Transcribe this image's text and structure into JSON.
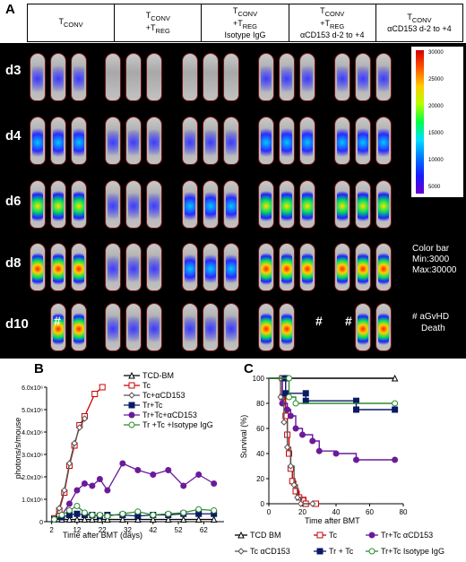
{
  "panel_a": {
    "letter": "A",
    "columns": [
      {
        "line1": "T",
        "sub1": "CONV",
        "line2": "",
        "line3": ""
      },
      {
        "line1": "T",
        "sub1": "CONV",
        "line2": "+T",
        "sub2": "REG",
        "line3": ""
      },
      {
        "line1": "T",
        "sub1": "CONV",
        "line2": "+T",
        "sub2": "REG",
        "line3": "Isotype IgG"
      },
      {
        "line1": "T",
        "sub1": "CONV",
        "line2": "+T",
        "sub2": "REG",
        "line3": "αCD153 d-2 to +4"
      },
      {
        "line1": "T",
        "sub1": "CONV",
        "line2": "",
        "line3": "αCD153 d-2 to +4"
      }
    ],
    "days": [
      "d3",
      "d4",
      "d6",
      "d8",
      "d10"
    ],
    "colorbar": {
      "ticks": [
        "30000",
        "25000",
        "20000",
        "15000",
        "10000",
        "5000"
      ],
      "label1": "Color bar",
      "label2": "Min:3000",
      "label3": "Max:30000"
    },
    "death_mark": "#",
    "death_note1": "# aGvHD",
    "death_note2": "Death"
  },
  "panel_b": {
    "letter": "B",
    "chart_data": {
      "type": "line",
      "xlabel": "Time after BMT (days)",
      "ylabel": "photons/s/mouse",
      "x_ticks": [
        "2",
        "12",
        "22",
        "32",
        "42",
        "52",
        "62"
      ],
      "y_ticks": [
        "0",
        "1.0x10⁶",
        "2.0x10⁶",
        "3.0x10⁶",
        "4.0x10⁶",
        "5.0x10⁶",
        "6.0x10⁶"
      ],
      "xlim": [
        0,
        70
      ],
      "ylim": [
        0,
        6000000
      ],
      "series": [
        {
          "name": "TCD-BM",
          "color": "#000000",
          "marker": "triangle",
          "x": [
            3,
            6,
            9,
            12,
            15,
            18,
            21,
            24,
            30,
            36,
            42,
            48,
            54,
            60,
            66
          ],
          "y": [
            100000,
            100000,
            100000,
            100000,
            100000,
            100000,
            100000,
            100000,
            100000,
            100000,
            100000,
            100000,
            100000,
            100000,
            100000
          ]
        },
        {
          "name": "Tc",
          "color": "#cc0000",
          "marker": "open-square",
          "x": [
            3,
            5,
            7,
            9,
            11,
            13,
            15,
            19,
            22
          ],
          "y": [
            150000,
            500000,
            1300000,
            2500000,
            3400000,
            4300000,
            4700000,
            5700000,
            6000000
          ]
        },
        {
          "name": "Tc+αCD153",
          "color": "#555555",
          "marker": "diamond",
          "x": [
            3,
            5,
            7,
            9,
            11,
            13,
            15
          ],
          "y": [
            150000,
            600000,
            1400000,
            2600000,
            3500000,
            4200000,
            4600000
          ]
        },
        {
          "name": "Tr+Tc",
          "color": "#0a1a66",
          "marker": "filled-square",
          "x": [
            3,
            6,
            9,
            12,
            15,
            18,
            21,
            24,
            30,
            36,
            42,
            48,
            54,
            60,
            66
          ],
          "y": [
            100000,
            200000,
            300000,
            350000,
            300000,
            300000,
            250000,
            300000,
            300000,
            250000,
            300000,
            300000,
            350000,
            350000,
            350000
          ]
        },
        {
          "name": "Tr+Tc+αCD153",
          "color": "#6a1b9a",
          "marker": "circle",
          "x": [
            3,
            6,
            9,
            12,
            15,
            18,
            21,
            24,
            30,
            36,
            42,
            48,
            54,
            60,
            66
          ],
          "y": [
            100000,
            300000,
            800000,
            1400000,
            1700000,
            1600000,
            1900000,
            1400000,
            2600000,
            2300000,
            2100000,
            2300000,
            1600000,
            2100000,
            1700000
          ]
        },
        {
          "name": "Tr +Tc +Isotype IgG",
          "color": "#2e8b2e",
          "marker": "open-circle",
          "x": [
            3,
            6,
            9,
            12,
            15,
            18,
            21,
            24,
            30,
            36,
            42,
            48,
            54,
            60,
            66
          ],
          "y": [
            100000,
            300000,
            500000,
            700000,
            400000,
            300000,
            300000,
            250000,
            350000,
            450000,
            300000,
            350000,
            400000,
            550000,
            500000
          ]
        }
      ]
    }
  },
  "panel_c": {
    "letter": "C",
    "chart_data": {
      "type": "line",
      "xlabel": "Time after BMT",
      "ylabel": "Survival (%)",
      "x_ticks": [
        "0",
        "20",
        "40",
        "60",
        "80"
      ],
      "y_ticks": [
        "0",
        "20",
        "40",
        "60",
        "80",
        "100"
      ],
      "xlim": [
        0,
        80
      ],
      "ylim": [
        0,
        100
      ],
      "series": [
        {
          "name": "TCD BM",
          "color": "#000000",
          "marker": "open-triangle",
          "steps": [
            [
              0,
              100
            ],
            [
              75,
              100
            ]
          ]
        },
        {
          "name": "Tc",
          "color": "#cc0000",
          "marker": "open-square",
          "steps": [
            [
              0,
              100
            ],
            [
              8,
              100
            ],
            [
              8,
              85
            ],
            [
              10,
              70
            ],
            [
              11,
              55
            ],
            [
              12,
              40
            ],
            [
              13,
              28
            ],
            [
              14,
              18
            ],
            [
              16,
              10
            ],
            [
              18,
              5
            ],
            [
              22,
              0
            ],
            [
              28,
              0
            ]
          ]
        },
        {
          "name": "Tr+Tc αCD153",
          "color": "#6a1b9a",
          "marker": "filled-circle",
          "steps": [
            [
              0,
              100
            ],
            [
              8,
              100
            ],
            [
              8,
              80
            ],
            [
              11,
              75
            ],
            [
              13,
              70
            ],
            [
              16,
              60
            ],
            [
              20,
              55
            ],
            [
              26,
              50
            ],
            [
              30,
              42
            ],
            [
              40,
              40
            ],
            [
              52,
              35
            ],
            [
              75,
              35
            ]
          ]
        },
        {
          "name": "Tc αCD153",
          "color": "#555555",
          "marker": "open-diamond",
          "steps": [
            [
              0,
              100
            ],
            [
              7,
              100
            ],
            [
              7,
              85
            ],
            [
              9,
              65
            ],
            [
              11,
              45
            ],
            [
              13,
              30
            ],
            [
              15,
              15
            ],
            [
              17,
              5
            ],
            [
              19,
              0
            ],
            [
              26,
              0
            ]
          ]
        },
        {
          "name": "Tr + Tc",
          "color": "#0a1a66",
          "marker": "filled-square",
          "steps": [
            [
              0,
              100
            ],
            [
              10,
              100
            ],
            [
              10,
              88
            ],
            [
              22,
              88
            ],
            [
              22,
              82
            ],
            [
              52,
              82
            ],
            [
              52,
              75
            ],
            [
              75,
              75
            ]
          ]
        },
        {
          "name": "Tr+Tc Isotype IgG",
          "color": "#2e8b2e",
          "marker": "open-circle",
          "steps": [
            [
              0,
              100
            ],
            [
              12,
              100
            ],
            [
              12,
              85
            ],
            [
              16,
              80
            ],
            [
              75,
              80
            ]
          ]
        }
      ]
    },
    "legend": [
      {
        "label": "TCD BM",
        "color": "#000000",
        "marker": "open-triangle"
      },
      {
        "label": "Tc",
        "color": "#cc0000",
        "marker": "open-square"
      },
      {
        "label": "Tr+Tc αCD153",
        "color": "#6a1b9a",
        "marker": "filled-circle"
      },
      {
        "label": "Tc αCD153",
        "color": "#555555",
        "marker": "open-diamond"
      },
      {
        "label": "Tr + Tc",
        "color": "#0a1a66",
        "marker": "filled-square"
      },
      {
        "label": "Tr+Tc Isotype IgG",
        "color": "#2e8b2e",
        "marker": "open-circle"
      }
    ]
  }
}
